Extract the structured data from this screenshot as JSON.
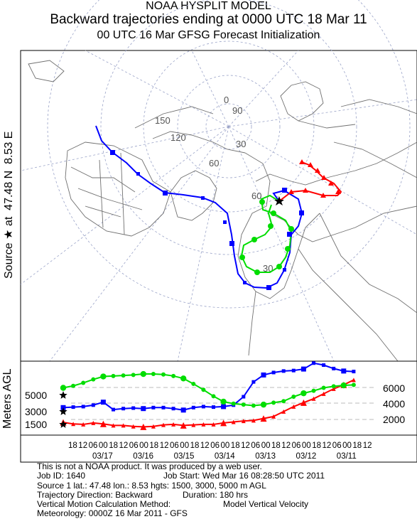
{
  "header": {
    "line1": "NOAA HYSPLIT MODEL",
    "line2": "Backward trajectories ending at 0000 UTC 18 Mar 11",
    "line3": "00 UTC 16 Mar    GFSG  Forecast Initialization"
  },
  "side_label": {
    "source_text": "Source",
    "star_symbol": "★",
    "at_text": "at",
    "lat": "47.48 N",
    "lon": "8.53 E"
  },
  "map": {
    "lon_labels": [
      "150",
      "120",
      "90",
      "60",
      "30",
      "0"
    ],
    "lat_labels": [
      "60",
      "30"
    ],
    "source_marker": "star"
  },
  "vertical_panel": {
    "left_axis_label": "Meters AGL",
    "left_ticks": [
      "5000",
      "3000",
      "1500"
    ],
    "right_ticks": [
      "6000",
      "4000",
      "2000"
    ],
    "time_ticks": [
      "18",
      "12",
      "06",
      "00",
      "18",
      "12",
      "06",
      "00",
      "18",
      "12",
      "06",
      "00",
      "18",
      "12",
      "06",
      "00",
      "18",
      "12",
      "06",
      "00",
      "18",
      "12",
      "06",
      "00",
      "18",
      "12",
      "06",
      "00",
      "18",
      "12"
    ],
    "date_labels": [
      "03/17",
      "03/16",
      "03/15",
      "03/14",
      "03/13",
      "03/12",
      "03/11"
    ]
  },
  "footer": {
    "line1": "This is not a NOAA product.  It was produced by a web user.",
    "line2a": "Job ID: 1640",
    "line2b": "Job Start: Wed Mar 16 08:28:50 UTC 2011",
    "line3": "Source 1 lat.: 47.48  lon.: 8.53  hgts: 1500, 3000, 5000 m AGL",
    "line4a": "Trajectory Direction: Backward",
    "line4b": "Duration: 180 hrs",
    "line5a": "Vertical Motion Calculation Method:",
    "line5b": "Model Vertical Velocity",
    "line6": "Meteorology: 0000Z 16 Mar 2011 - GFS"
  },
  "colors": {
    "red": "#ff0000",
    "blue": "#0000ff",
    "green": "#00dd00",
    "grid": "#9aa3c8",
    "coast": "#707070"
  },
  "chart_data": {
    "type": "line",
    "x": [
      "18",
      "12",
      "06",
      "00",
      "18",
      "12",
      "06",
      "00",
      "18",
      "12",
      "06",
      "00",
      "18",
      "12",
      "06",
      "00",
      "18",
      "12",
      "06",
      "00",
      "18",
      "12",
      "06",
      "00",
      "18",
      "12",
      "06",
      "00",
      "18",
      "12"
    ],
    "ylabel": "Meters AGL",
    "series": [
      {
        "name": "1500",
        "color": "#ff0000",
        "values": [
          1500,
          1350,
          1300,
          1450,
          1350,
          1200,
          1200,
          1100,
          1050,
          1100,
          1250,
          1300,
          1200,
          1250,
          1300,
          1300,
          1450,
          1550,
          1650,
          1700,
          1900,
          2100,
          2600,
          3100,
          3500,
          3900,
          4400,
          4900,
          5300,
          5800
        ]
      },
      {
        "name": "3000",
        "color": "#0000ff",
        "values": [
          3000,
          3050,
          3100,
          3250,
          3550,
          2800,
          2900,
          2950,
          2900,
          3000,
          3000,
          2900,
          2750,
          3000,
          3100,
          3050,
          3100,
          3250,
          4100,
          5600,
          6300,
          6550,
          6700,
          6750,
          6900,
          7500,
          7300,
          6950,
          6700,
          6650
        ]
      },
      {
        "name": "5000",
        "color": "#00dd00",
        "values": [
          5000,
          5200,
          5500,
          5850,
          6150,
          6200,
          6250,
          6300,
          6400,
          6400,
          6350,
          6200,
          5950,
          5400,
          4800,
          4150,
          3600,
          3400,
          3300,
          3200,
          3300,
          3500,
          3650,
          4100,
          4450,
          4700,
          5000,
          5150,
          5250,
          5300
        ]
      }
    ]
  }
}
